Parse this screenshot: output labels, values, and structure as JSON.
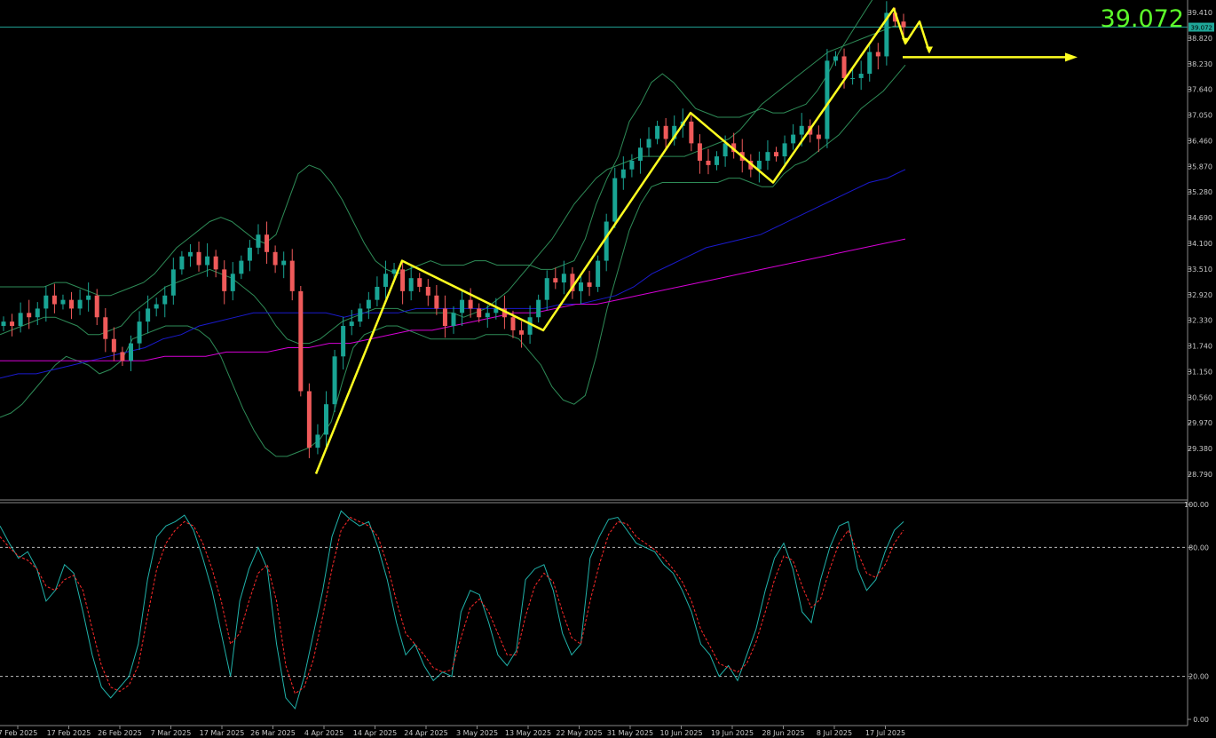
{
  "chart_data": [
    {
      "type": "candlestick",
      "instrument_price": "39.072",
      "current_price": 39.072,
      "price_axis_ticks": [
        "39.410",
        "38.820",
        "38.230",
        "37.640",
        "37.050",
        "36.460",
        "35.870",
        "35.280",
        "34.690",
        "34.100",
        "33.510",
        "32.920",
        "32.330",
        "31.740",
        "31.150",
        "30.560",
        "29.970",
        "29.380",
        "28.790"
      ],
      "ylim": [
        28.55,
        39.92
      ],
      "x_axis_ticks": [
        "7 Feb 2025",
        "17 Feb 2025",
        "26 Feb 2025",
        "7 Mar 2025",
        "17 Mar 2025",
        "26 Mar 2025",
        "4 Apr 2025",
        "14 Apr 2025",
        "24 Apr 2025",
        "3 May 2025",
        "13 May 2025",
        "22 May 2025",
        "31 May 2025",
        "10 Jun 2025",
        "19 Jun 2025",
        "28 Jun 2025",
        "8 Jul 2025",
        "17 Jul 2025"
      ],
      "close_series": [
        32.3,
        32.2,
        32.5,
        32.4,
        32.6,
        32.9,
        32.7,
        32.8,
        32.6,
        32.8,
        32.9,
        32.4,
        31.9,
        31.6,
        31.4,
        31.8,
        32.3,
        32.6,
        32.7,
        32.9,
        33.5,
        33.8,
        33.9,
        33.6,
        33.8,
        33.5,
        33.0,
        33.4,
        33.7,
        34.0,
        34.3,
        33.9,
        33.6,
        33.7,
        33.0,
        30.7,
        29.4,
        29.7,
        30.4,
        31.5,
        32.2,
        32.3,
        32.6,
        32.8,
        33.1,
        33.4,
        33.5,
        33.0,
        33.3,
        33.1,
        32.9,
        32.6,
        32.2,
        32.5,
        32.8,
        32.6,
        32.4,
        32.5,
        32.6,
        32.4,
        32.1,
        32.0,
        32.4,
        32.8,
        33.3,
        33.2,
        33.4,
        33.0,
        33.2,
        33.1,
        33.7,
        34.6,
        35.6,
        35.8,
        36.0,
        36.3,
        36.5,
        36.8,
        36.5,
        36.8,
        36.9,
        36.4,
        36.0,
        35.9,
        36.1,
        36.4,
        36.2,
        36.0,
        35.8,
        36.0,
        36.2,
        36.1,
        36.4,
        36.6,
        36.8,
        36.6,
        36.5,
        38.3,
        38.4,
        37.9,
        37.9,
        38.0,
        38.5,
        38.4,
        39.4,
        39.2,
        39.07
      ],
      "series": [
        {
          "name": "Bollinger upper",
          "color": "#2e8b57",
          "values": [
            33.1,
            33.1,
            33.1,
            33.1,
            33.1,
            33.2,
            33.2,
            33.1,
            33.0,
            32.9,
            32.9,
            33.0,
            33.1,
            33.2,
            33.4,
            33.7,
            34.0,
            34.2,
            34.4,
            34.6,
            34.7,
            34.6,
            34.4,
            34.2,
            34.1,
            34.3,
            35.0,
            35.7,
            35.9,
            35.8,
            35.5,
            35.1,
            34.6,
            34.1,
            33.7,
            33.5,
            33.4,
            33.5,
            33.6,
            33.7,
            33.6,
            33.6,
            33.6,
            33.7,
            33.7,
            33.6,
            33.6,
            33.6,
            33.6,
            33.5,
            33.5,
            33.6,
            33.7,
            34.2,
            35.0,
            35.6,
            36.1,
            36.9,
            37.3,
            37.8,
            38.0,
            37.8,
            37.5,
            37.2,
            37.1,
            37.0,
            37.0,
            37.0,
            37.1,
            37.2,
            37.1,
            37.1,
            37.2,
            37.3,
            37.6,
            38.0,
            38.5,
            38.9,
            39.3,
            39.7,
            39.9,
            39.9,
            39.9
          ]
        },
        {
          "name": "Bollinger middle",
          "color": "#2e8b57",
          "values": [
            32.0,
            32.1,
            32.2,
            32.3,
            32.4,
            32.4,
            32.3,
            32.2,
            32.0,
            32.0,
            32.1,
            32.2,
            32.5,
            32.7,
            32.9,
            33.1,
            33.2,
            33.3,
            33.4,
            33.5,
            33.4,
            33.3,
            33.1,
            32.9,
            32.6,
            32.2,
            31.9,
            31.8,
            31.8,
            31.9,
            32.1,
            32.3,
            32.4,
            32.5,
            32.6,
            32.6,
            32.6,
            32.5,
            32.5,
            32.5,
            32.5,
            32.5,
            32.4,
            32.5,
            32.6,
            32.8,
            33.0,
            33.3,
            33.6,
            33.9,
            34.2,
            34.6,
            35.0,
            35.3,
            35.6,
            35.8,
            35.9,
            36.0,
            36.1,
            36.1,
            36.1,
            36.1,
            36.1,
            36.2,
            36.3,
            36.4,
            36.5,
            36.7,
            37.0,
            37.3,
            37.5,
            37.7,
            37.9,
            38.1,
            38.3,
            38.5,
            38.6,
            38.7,
            38.8,
            38.9,
            39.0,
            39.1,
            39.1
          ]
        },
        {
          "name": "Bollinger lower",
          "color": "#2e8b57",
          "values": [
            30.1,
            30.2,
            30.4,
            30.7,
            31.0,
            31.3,
            31.5,
            31.4,
            31.3,
            31.1,
            31.2,
            31.4,
            31.9,
            32.0,
            32.1,
            32.2,
            32.2,
            32.2,
            32.1,
            31.9,
            31.5,
            30.9,
            30.3,
            29.8,
            29.4,
            29.2,
            29.2,
            29.3,
            29.4,
            29.6,
            30.0,
            30.9,
            31.7,
            32.0,
            32.1,
            32.2,
            32.2,
            32.1,
            32.0,
            31.9,
            31.9,
            31.9,
            31.9,
            31.9,
            32.0,
            32.0,
            32.0,
            31.9,
            31.6,
            31.3,
            30.8,
            30.5,
            30.4,
            30.6,
            31.5,
            32.6,
            33.5,
            34.4,
            35.0,
            35.4,
            35.5,
            35.5,
            35.5,
            35.5,
            35.5,
            35.5,
            35.6,
            35.6,
            35.5,
            35.4,
            35.4,
            35.7,
            35.9,
            36.0,
            36.2,
            36.4,
            36.6,
            36.9,
            37.2,
            37.4,
            37.6,
            37.9,
            38.2
          ]
        },
        {
          "name": "MA 50",
          "color": "#1a1acd",
          "values": [
            31.0,
            31.1,
            31.1,
            31.2,
            31.3,
            31.4,
            31.5,
            31.6,
            31.7,
            31.9,
            32.0,
            32.2,
            32.3,
            32.4,
            32.5,
            32.5,
            32.5,
            32.5,
            32.5,
            32.4,
            32.5,
            32.5,
            32.5,
            32.6,
            32.6,
            32.6,
            32.6,
            32.6,
            32.6,
            32.6,
            32.6,
            32.7,
            32.7,
            32.8,
            32.9,
            33.1,
            33.4,
            33.6,
            33.8,
            34.0,
            34.1,
            34.2,
            34.3,
            34.5,
            34.7,
            34.9,
            35.1,
            35.3,
            35.5,
            35.6,
            35.8
          ]
        },
        {
          "name": "MA 200",
          "color": "#d600d6",
          "values": [
            31.4,
            31.4,
            31.4,
            31.4,
            31.4,
            31.4,
            31.4,
            31.4,
            31.5,
            31.5,
            31.5,
            31.6,
            31.6,
            31.6,
            31.7,
            31.7,
            31.8,
            31.8,
            31.9,
            32.0,
            32.1,
            32.1,
            32.2,
            32.3,
            32.4,
            32.5,
            32.5,
            32.6,
            32.7,
            32.7,
            32.8,
            32.9,
            33.0,
            33.1,
            33.2,
            33.3,
            33.4,
            33.5,
            33.6,
            33.7,
            33.8,
            33.9,
            34.0,
            34.1,
            34.2
          ]
        }
      ],
      "zigzag_points": [
        [
          356,
          28.8
        ],
        [
          453,
          33.7
        ],
        [
          612,
          32.1
        ],
        [
          778,
          37.1
        ],
        [
          871,
          35.5
        ],
        [
          1007,
          39.5
        ],
        [
          1020,
          38.7
        ],
        [
          1036,
          39.2
        ],
        [
          1047,
          38.5
        ]
      ],
      "forecast_line": [
        [
          1017,
          38.38
        ],
        [
          1200,
          38.38
        ]
      ]
    },
    {
      "type": "line",
      "indicator": "Stochastic",
      "axis_ticks": [
        "100.00",
        "80.00",
        "20.00",
        "0.00"
      ],
      "levels": [
        80,
        20
      ],
      "ylim": [
        0,
        100
      ],
      "series": [
        {
          "name": "%K",
          "color": "#20b2aa",
          "values": [
            90,
            82,
            75,
            78,
            70,
            55,
            60,
            72,
            68,
            50,
            30,
            15,
            10,
            15,
            20,
            35,
            65,
            85,
            90,
            92,
            95,
            88,
            75,
            60,
            40,
            20,
            55,
            70,
            80,
            70,
            35,
            10,
            5,
            20,
            40,
            60,
            85,
            97,
            93,
            90,
            92,
            80,
            65,
            45,
            30,
            35,
            25,
            18,
            22,
            20,
            50,
            60,
            58,
            45,
            30,
            25,
            32,
            65,
            70,
            72,
            60,
            40,
            30,
            35,
            75,
            85,
            93,
            94,
            88,
            82,
            80,
            78,
            72,
            68,
            60,
            50,
            35,
            30,
            20,
            25,
            18,
            30,
            42,
            60,
            75,
            82,
            70,
            50,
            45,
            65,
            80,
            90,
            92,
            70,
            60,
            65,
            78,
            88,
            92
          ]
        },
        {
          "name": "%D",
          "color": "#ff2a2a",
          "values": [
            85,
            80,
            76,
            74,
            70,
            62,
            60,
            65,
            67,
            60,
            42,
            25,
            15,
            13,
            16,
            25,
            48,
            70,
            82,
            88,
            92,
            90,
            82,
            70,
            55,
            35,
            40,
            55,
            68,
            72,
            55,
            25,
            12,
            15,
            28,
            48,
            70,
            88,
            94,
            92,
            90,
            85,
            72,
            55,
            40,
            35,
            30,
            24,
            22,
            23,
            38,
            52,
            56,
            50,
            40,
            30,
            30,
            48,
            62,
            68,
            64,
            50,
            38,
            35,
            55,
            72,
            86,
            92,
            91,
            85,
            82,
            79,
            75,
            70,
            64,
            55,
            42,
            34,
            26,
            24,
            22,
            26,
            36,
            50,
            65,
            76,
            74,
            62,
            52,
            56,
            70,
            82,
            88,
            78,
            68,
            66,
            72,
            82,
            88
          ]
        }
      ]
    }
  ],
  "colors": {
    "bull_candle": "#19a494",
    "bear_candle": "#ef5a5a",
    "zigzag": "#ffff20",
    "price_line": "#1f9e91",
    "price_tag_bg": "#1fa698",
    "big_price": "#5dfc2a"
  }
}
